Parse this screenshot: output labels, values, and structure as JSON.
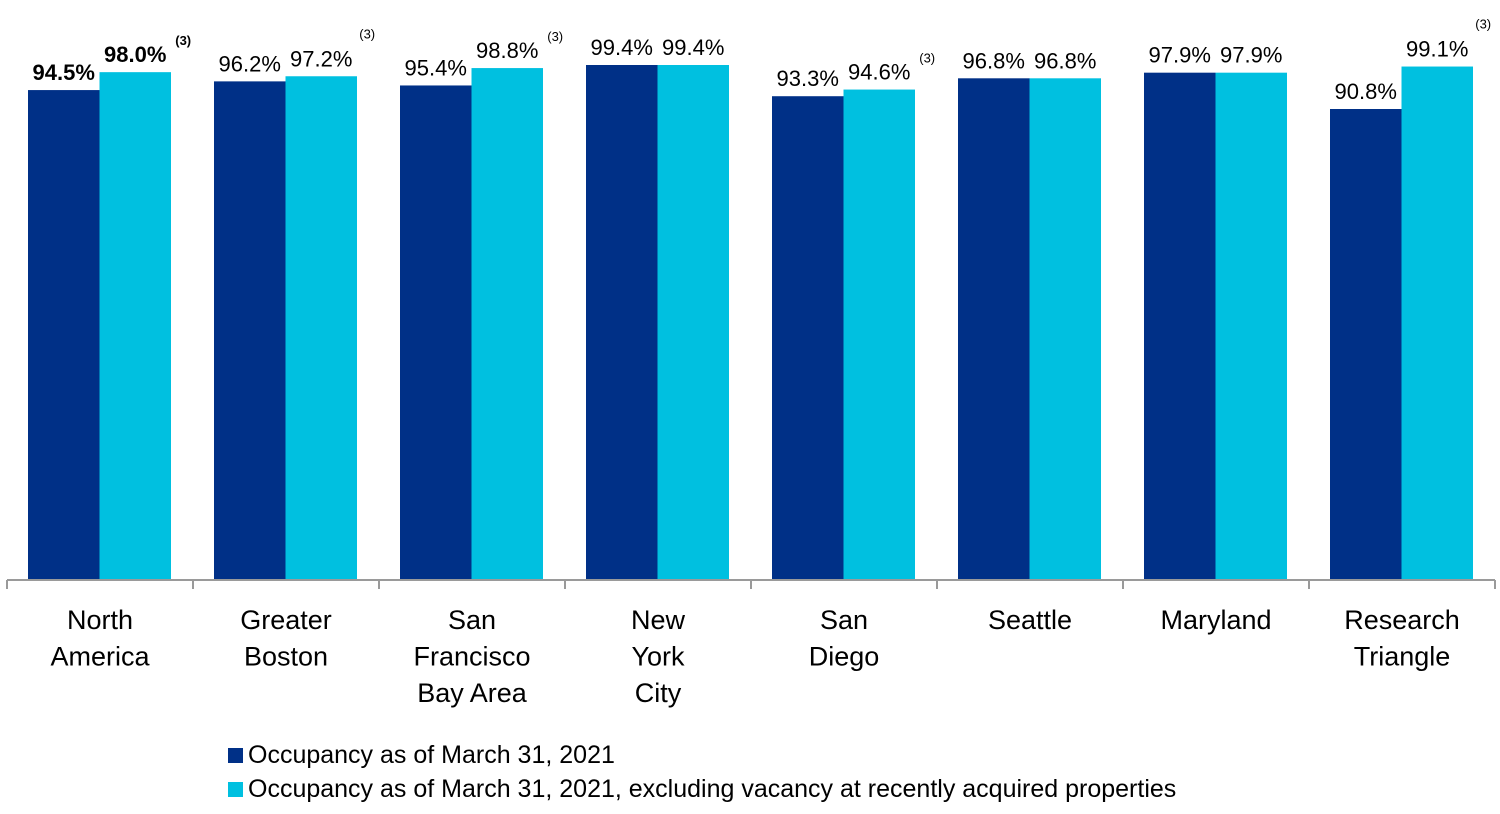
{
  "chart_data": {
    "type": "bar",
    "categories": [
      [
        "North",
        "America"
      ],
      [
        "Greater",
        "Boston"
      ],
      [
        "San",
        "Francisco",
        "Bay Area"
      ],
      [
        "New",
        "York",
        "City"
      ],
      [
        "San",
        "Diego"
      ],
      [
        "Seattle"
      ],
      [
        "Maryland"
      ],
      [
        "Research",
        "Triangle"
      ]
    ],
    "series": [
      {
        "name": "Occupancy as of March 31, 2021",
        "color": "#003087",
        "values": [
          94.5,
          96.2,
          95.4,
          99.4,
          93.3,
          96.8,
          97.9,
          90.8
        ],
        "labels": [
          "94.5%",
          "96.2%",
          "95.4%",
          "99.4%",
          "93.3%",
          "96.8%",
          "97.9%",
          "90.8%"
        ],
        "footnotes": [
          "",
          "",
          "",
          "",
          "",
          "",
          "",
          ""
        ]
      },
      {
        "name": "Occupancy as of March 31, 2021, excluding vacancy at recently acquired properties",
        "color": "#00C0E0",
        "values": [
          98.0,
          97.2,
          98.8,
          99.4,
          94.6,
          96.8,
          97.9,
          99.1
        ],
        "labels": [
          "98.0%",
          "97.2%",
          "98.8%",
          "99.4%",
          "94.6%",
          "96.8%",
          "97.9%",
          "99.1%"
        ],
        "footnotes": [
          "(3)",
          "(3)",
          "(3)",
          "",
          "(3)",
          "",
          "",
          "(3)"
        ]
      }
    ],
    "bold_categories": [
      0
    ],
    "ylim": [
      0,
      100
    ],
    "grid": false,
    "legend_position": "bottom",
    "axis_color": "#9a9a9a"
  }
}
